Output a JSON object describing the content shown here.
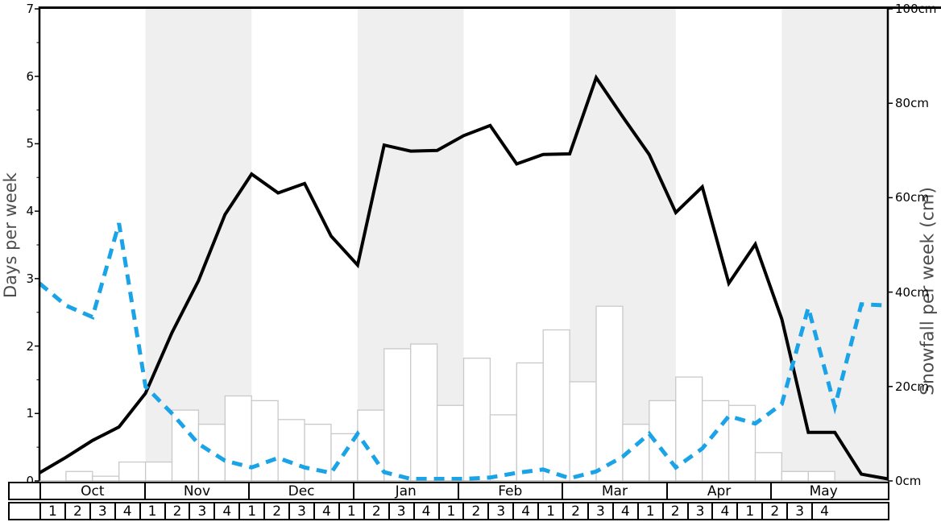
{
  "chart_data": {
    "type": "combo: bar + line + line",
    "title": "",
    "months": [
      "Oct",
      "Nov",
      "Dec",
      "Jan",
      "Feb",
      "Mar",
      "Apr",
      "May"
    ],
    "week_labels": [
      "1",
      "2",
      "3",
      "4"
    ],
    "shaded_months": [
      "Nov",
      "Jan",
      "Mar",
      "May"
    ],
    "left_axis": {
      "label": "Days per week",
      "min": 0,
      "max": 7,
      "tick_labels": [
        "0",
        "1",
        "2",
        "3",
        "4",
        "5",
        "6",
        "7"
      ],
      "minor_tick_step": 0.5
    },
    "right_axis": {
      "label": "Snowfall per week (cm)",
      "min": 0,
      "max": 100,
      "tick_labels": [
        "0cm",
        "20cm",
        "40cm",
        "60cm",
        "80cm",
        "100cm"
      ],
      "tick_values": [
        0,
        20,
        40,
        60,
        80,
        100
      ]
    },
    "bars": {
      "name": "weekly snowfall bars (white, read on right axis, one bar per week Oct1-May4)",
      "unit": "cm",
      "values_cm": [
        0,
        2,
        1,
        4,
        4,
        15,
        12,
        18,
        17,
        13,
        12,
        10,
        15,
        28,
        29,
        16,
        26,
        14,
        25,
        32,
        21,
        37,
        12,
        17,
        22,
        17,
        16,
        6,
        2,
        2,
        0,
        0
      ]
    },
    "series": [
      {
        "name": "black solid line (days per week, left axis)",
        "style": "solid",
        "color": "#000000",
        "x_note": "33 weekly points from start of Oct to end of May",
        "values": [
          0.12,
          0.35,
          0.6,
          0.8,
          1.3,
          2.2,
          2.97,
          3.95,
          4.55,
          4.27,
          4.41,
          3.63,
          3.2,
          4.98,
          4.89,
          4.9,
          5.12,
          5.27,
          4.7,
          4.84,
          4.85,
          5.98,
          5.4,
          4.84,
          3.98,
          4.36,
          2.93,
          3.51,
          2.4,
          0.72,
          0.72,
          0.1,
          0.03
        ]
      },
      {
        "name": "blue dashed line (plotted on left-axis scale)",
        "style": "dashed",
        "color": "#1ba3e8",
        "x_note": "33 weekly points from start of Oct to end of May",
        "values": [
          2.93,
          2.6,
          2.43,
          3.82,
          1.4,
          1.0,
          0.55,
          0.3,
          0.2,
          0.34,
          0.2,
          0.12,
          0.7,
          0.13,
          0.03,
          0.03,
          0.03,
          0.05,
          0.12,
          0.17,
          0.04,
          0.14,
          0.36,
          0.7,
          0.2,
          0.48,
          0.96,
          0.85,
          1.14,
          2.57,
          1.1,
          2.62,
          2.6
        ]
      }
    ],
    "layout": {
      "grid": "off",
      "legend": "none",
      "band_color": "#efefef",
      "bar_fill": "#ffffff",
      "bar_border": "#c9c9c9",
      "axis_title_color": "#4d4d4d",
      "background": "#ffffff"
    }
  }
}
